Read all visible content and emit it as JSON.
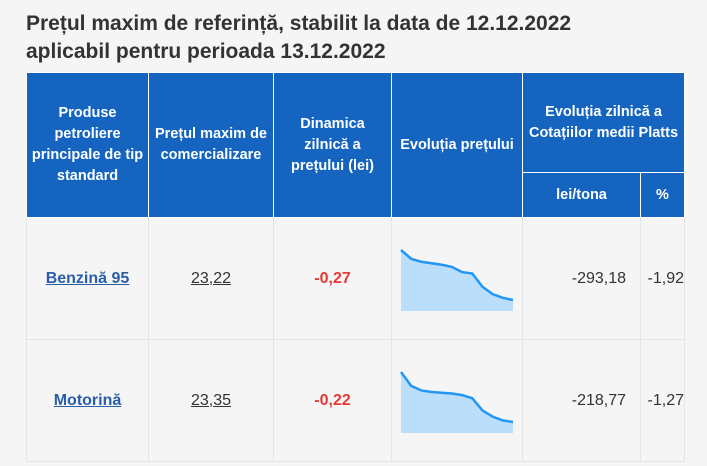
{
  "title": {
    "line1": "Prețul maxim de referință, stabilit la data de 12.12.2022",
    "line2": "aplicabil pentru perioada 13.12.2022"
  },
  "headers": {
    "products": "Produse petroliere principale de tip standard",
    "max_price": "Prețul maxim de comercializare",
    "daily_dynamics": "Dinamica zilnică a prețului (lei)",
    "price_evolution": "Evoluția prețului",
    "platts": "Evoluția zilnică a Cotațiilor medii Platts",
    "lei_ton": "lei/tona",
    "percent": "%"
  },
  "rows": [
    {
      "product": "Benzină 95",
      "price": "23,22",
      "dynamics": "-0,27",
      "lei_ton": "-293,18",
      "percent": "-1,92",
      "trend": [
        23.9,
        23.78,
        23.74,
        23.72,
        23.7,
        23.67,
        23.6,
        23.58,
        23.4,
        23.3,
        23.25,
        23.22
      ]
    },
    {
      "product": "Motorină",
      "price": "23,35",
      "dynamics": "-0,22",
      "lei_ton": "-218,77",
      "percent": "-1,27",
      "trend": [
        24.0,
        23.82,
        23.76,
        23.74,
        23.73,
        23.72,
        23.7,
        23.66,
        23.5,
        23.42,
        23.37,
        23.35
      ]
    }
  ],
  "colors": {
    "header_bg": "#1565c0",
    "negative": "#e53935",
    "sparkline_line": "#2196f3",
    "sparkline_fill": "#bbdefb",
    "link": "#2a5fa8"
  }
}
